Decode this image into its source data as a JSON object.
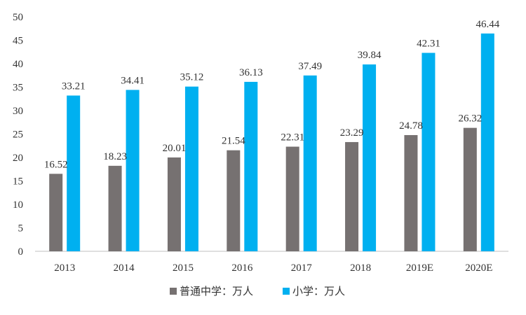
{
  "chart_data": {
    "type": "bar",
    "title": "",
    "xlabel": "",
    "ylabel": "",
    "ylim": [
      0,
      50
    ],
    "yticks": [
      0,
      5,
      10,
      15,
      20,
      25,
      30,
      35,
      40,
      45,
      50
    ],
    "grid": false,
    "legend_position": "bottom",
    "categories": [
      "2013",
      "2014",
      "2015",
      "2016",
      "2017",
      "2018",
      "2019E",
      "2020E"
    ],
    "series": [
      {
        "name": "普通中学：万人",
        "color": "#767171",
        "values": [
          16.52,
          18.23,
          20.01,
          21.54,
          22.31,
          23.29,
          24.78,
          26.32
        ]
      },
      {
        "name": "小学：万人",
        "color": "#00B0F0",
        "values": [
          33.21,
          34.41,
          35.12,
          36.13,
          37.49,
          39.84,
          42.31,
          46.44
        ]
      }
    ]
  }
}
